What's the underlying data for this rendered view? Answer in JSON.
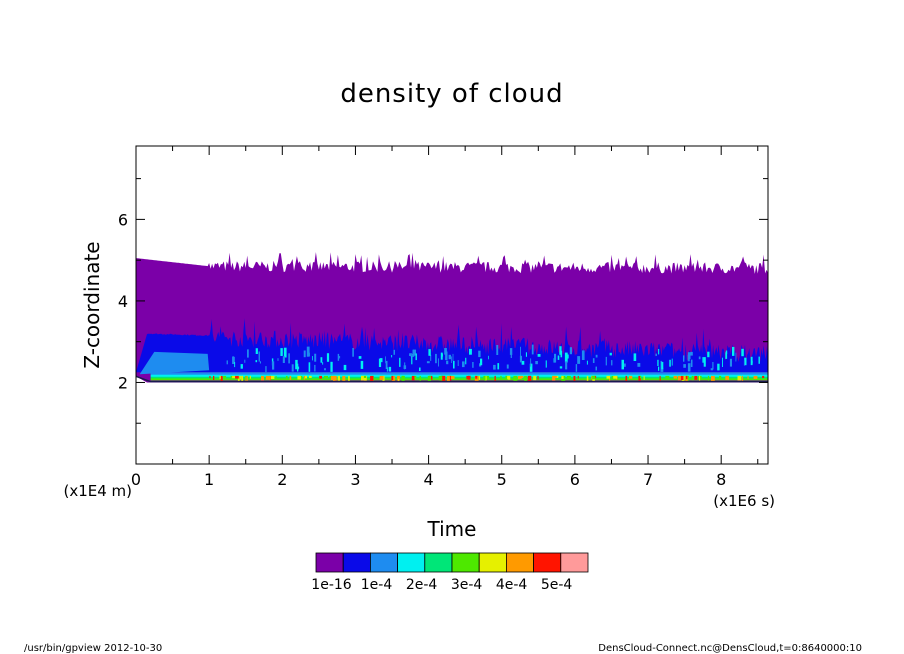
{
  "chart_data": {
    "type": "heatmap",
    "title": "density of cloud",
    "xlabel": "Time",
    "ylabel": "Z-coordinate",
    "x_unit": "(x1E6 s)",
    "y_unit": "(x1E4 m)",
    "xlim": [
      0,
      8.64
    ],
    "ylim": [
      0,
      7.8
    ],
    "x_ticks": [
      "0",
      "1",
      "2",
      "3",
      "4",
      "5",
      "6",
      "7",
      "8"
    ],
    "y_ticks": [
      "2",
      "4",
      "6"
    ],
    "x_tick_values": [
      0,
      1,
      2,
      3,
      4,
      5,
      6,
      7,
      8
    ],
    "y_tick_values": [
      2,
      4,
      6
    ],
    "levels": [
      "1e-16",
      "1e-4",
      "2e-4",
      "3e-4",
      "4e-4",
      "5e-4"
    ],
    "level_colors": [
      "#7b00a8",
      "#0a0ae8",
      "#1e8cf0",
      "#00f0f0",
      "#00e678",
      "#4ee800",
      "#e6f000",
      "#ff9a00",
      "#ff1400",
      "#ff9a9a"
    ],
    "cloud_layer": {
      "outer_top": [
        [
          0,
          5.05
        ],
        [
          1,
          4.85
        ],
        [
          8.64,
          4.8
        ]
      ],
      "outer_bottom": 2.0,
      "core_top": [
        [
          0.15,
          3.2
        ],
        [
          1.0,
          3.15
        ],
        [
          8.64,
          2.75
        ]
      ],
      "core_bottom": 2.25,
      "bright_band": [
        2.05,
        2.25
      ]
    },
    "grid": false,
    "legend": "bottom"
  },
  "footer": {
    "left": "/usr/bin/gpview   2012-10-30",
    "right": "DensCloud-Connect.nc@DensCloud,t=0:8640000:10"
  }
}
